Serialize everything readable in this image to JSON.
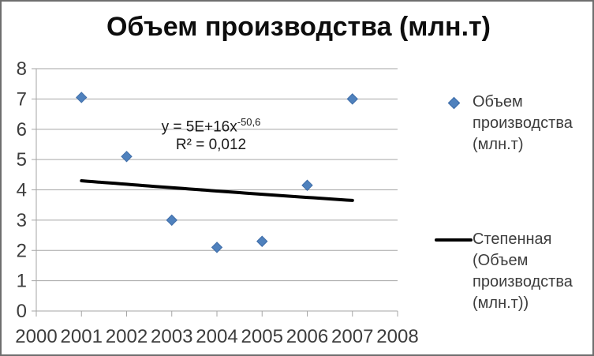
{
  "chart_data": {
    "type": "scatter",
    "title": "Объем производства (млн.т)",
    "xlabel": "",
    "ylabel": "",
    "xlim": [
      2000,
      2008
    ],
    "ylim": [
      0,
      8
    ],
    "x_ticks": [
      2000,
      2001,
      2002,
      2003,
      2004,
      2005,
      2006,
      2007,
      2008
    ],
    "y_ticks": [
      0,
      1,
      2,
      3,
      4,
      5,
      6,
      7,
      8
    ],
    "grid": true,
    "legend_position": "right",
    "series": [
      {
        "name": "Объем производства (млн.т)",
        "marker": "diamond",
        "color": "#4f81bd",
        "x": [
          2001,
          2002,
          2003,
          2004,
          2005,
          2006,
          2007
        ],
        "values": [
          7.05,
          5.1,
          3.0,
          2.1,
          2.3,
          4.15,
          7.0
        ]
      }
    ],
    "trendline": {
      "name": "Степенная (Объем производства (млн.т))",
      "type": "power",
      "color": "#000000",
      "x_start": 2001,
      "y_start": 4.3,
      "x_end": 2007,
      "y_end": 3.65
    },
    "annotation": {
      "equation_base": "y = 5E+16x",
      "equation_exponent": "-50,6",
      "r_squared": "R² = 0,012"
    },
    "colors": {
      "marker_fill": "#4f81bd",
      "marker_stroke": "#3f6da8",
      "trendline": "#000000",
      "gridline": "#a6a6a6",
      "axis": "#a6a6a6",
      "tick_label": "#3d3d3d",
      "title": "#0d0d0d"
    }
  },
  "legend": {
    "series_label": "Объем производства (млн.т)",
    "trend_label": "Степенная (Объем производства (млн.т))"
  }
}
